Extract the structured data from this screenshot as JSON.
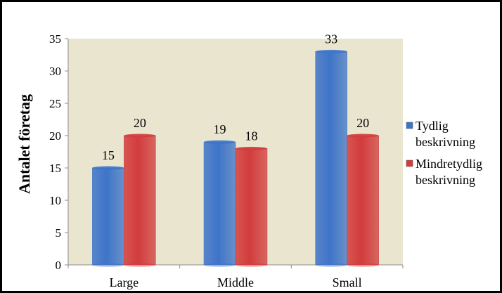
{
  "chart_data": {
    "type": "bar",
    "categories": [
      "Large",
      "Middle",
      "Small"
    ],
    "series": [
      {
        "name_lines": [
          "Tydlig",
          "beskrivning"
        ],
        "values": [
          15,
          19,
          33
        ],
        "color": "#3E74C8"
      },
      {
        "name_lines": [
          "Mindretydlig",
          "beskrivning"
        ],
        "values": [
          20,
          18,
          20
        ],
        "color": "#D23C3C"
      }
    ],
    "ylabel": "Antalet företag",
    "xlabel": "",
    "title": "",
    "ylim": [
      0,
      35
    ],
    "yticks": [
      "0",
      "5",
      "10",
      "15",
      "20",
      "25",
      "30",
      "35"
    ],
    "data_labels": true,
    "grid": false,
    "legend_placement": "right",
    "plot_background": "#EAE5CF"
  }
}
